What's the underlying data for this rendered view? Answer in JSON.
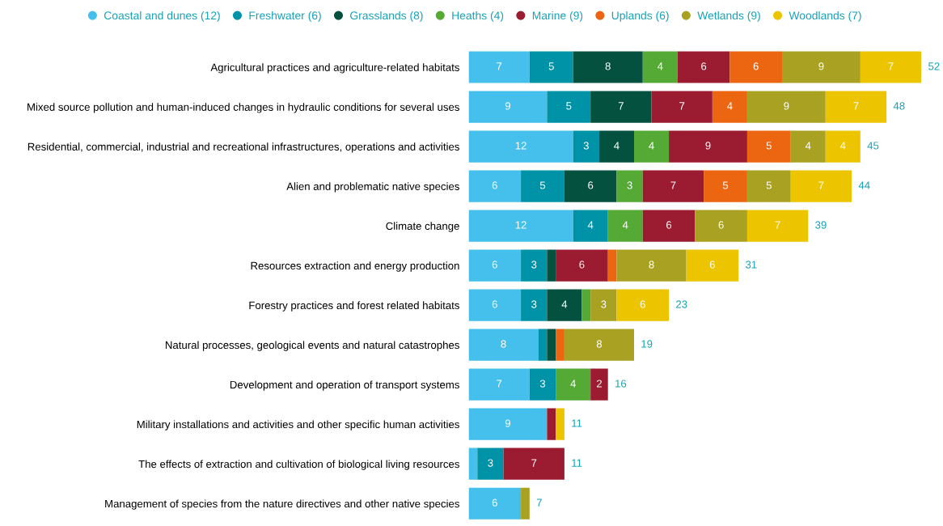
{
  "chart_data": {
    "type": "bar",
    "orientation": "horizontal",
    "stacked": true,
    "legend": "top",
    "categories": [
      "Agricultural practices and agriculture-related habitats",
      "Mixed source pollution and human-induced changes in hydraulic conditions for several uses",
      "Residential, commercial, industrial and recreational infrastructures, operations and activities",
      "Alien and problematic native species",
      "Climate change",
      "Resources extraction and energy production",
      "Forestry practices and forest related habitats",
      "Natural processes, geological events and natural catastrophes",
      "Development and operation of transport systems",
      "Military installations and activities and other specific human activities",
      "The effects of extraction and cultivation of biological living resources",
      "Management of species from the nature directives and other native species"
    ],
    "series": [
      {
        "name": "Coastal and dunes (12)",
        "color": "#45bfec",
        "values": [
          7,
          9,
          12,
          6,
          12,
          6,
          6,
          8,
          7,
          9,
          1,
          6
        ],
        "value_labels": [
          "7",
          "9",
          "12",
          "6",
          "12",
          "6",
          "6",
          "8",
          "7",
          "9",
          null,
          "6"
        ]
      },
      {
        "name": "Freshwater (6)",
        "color": "#0093a8",
        "values": [
          5,
          5,
          3,
          5,
          4,
          3,
          3,
          1,
          3,
          null,
          3,
          null
        ],
        "value_labels": [
          "5",
          "5",
          "3",
          "5",
          "4",
          "3",
          "3",
          null,
          "3",
          null,
          "3",
          null
        ]
      },
      {
        "name": "Grasslands (8)",
        "color": "#04513f",
        "values": [
          8,
          7,
          4,
          6,
          null,
          1,
          4,
          1,
          null,
          null,
          null,
          null
        ],
        "value_labels": [
          "8",
          "7",
          "4",
          "6",
          null,
          null,
          "4",
          null,
          null,
          null,
          null,
          null
        ]
      },
      {
        "name": "Heaths (4)",
        "color": "#55a935",
        "values": [
          4,
          null,
          4,
          3,
          4,
          null,
          1,
          null,
          4,
          null,
          null,
          null
        ],
        "value_labels": [
          "4",
          null,
          "4",
          "3",
          "4",
          null,
          null,
          null,
          "4",
          null,
          null,
          null
        ]
      },
      {
        "name": "Marine (9)",
        "color": "#9b1b30",
        "values": [
          6,
          7,
          9,
          7,
          6,
          6,
          null,
          null,
          2,
          1,
          7,
          null
        ],
        "value_labels": [
          "6",
          "7",
          "9",
          "7",
          "6",
          "6",
          null,
          null,
          "2",
          null,
          "7",
          null
        ]
      },
      {
        "name": "Uplands (6)",
        "color": "#ec6511",
        "values": [
          6,
          4,
          5,
          5,
          null,
          1,
          null,
          1,
          null,
          null,
          null,
          null
        ],
        "value_labels": [
          "6",
          "4",
          "5",
          "5",
          null,
          null,
          null,
          null,
          null,
          null,
          null,
          null
        ]
      },
      {
        "name": "Wetlands (9)",
        "color": "#a9a122",
        "values": [
          9,
          9,
          4,
          5,
          6,
          8,
          3,
          8,
          null,
          null,
          null,
          1
        ],
        "value_labels": [
          "9",
          "9",
          "4",
          "5",
          "6",
          "8",
          "3",
          "8",
          null,
          null,
          null,
          null
        ]
      },
      {
        "name": "Woodlands (7)",
        "color": "#ecc500",
        "values": [
          7,
          7,
          4,
          7,
          7,
          6,
          6,
          null,
          null,
          1,
          null,
          null
        ],
        "value_labels": [
          "7",
          "7",
          "4",
          "7",
          "7",
          "6",
          "6",
          null,
          null,
          null,
          null,
          null
        ]
      }
    ],
    "totals": [
      "52",
      "48",
      "45",
      "44",
      "39",
      "31",
      "23",
      "19",
      "16",
      "11",
      "11",
      "7"
    ]
  }
}
